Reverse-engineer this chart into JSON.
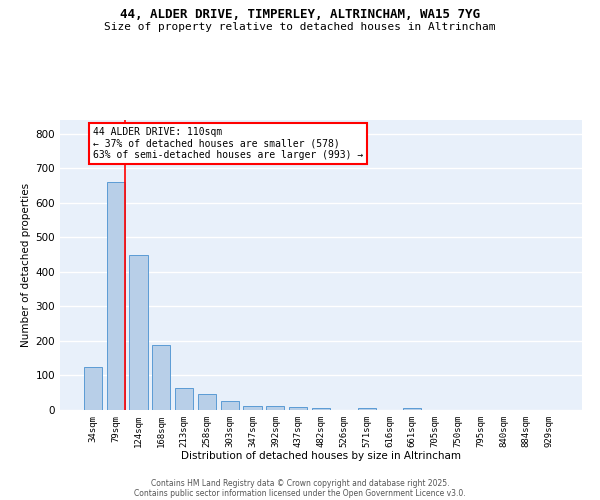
{
  "title_line1": "44, ALDER DRIVE, TIMPERLEY, ALTRINCHAM, WA15 7YG",
  "title_line2": "Size of property relative to detached houses in Altrincham",
  "xlabel": "Distribution of detached houses by size in Altrincham",
  "ylabel": "Number of detached properties",
  "categories": [
    "34sqm",
    "79sqm",
    "124sqm",
    "168sqm",
    "213sqm",
    "258sqm",
    "303sqm",
    "347sqm",
    "392sqm",
    "437sqm",
    "482sqm",
    "526sqm",
    "571sqm",
    "616sqm",
    "661sqm",
    "705sqm",
    "750sqm",
    "795sqm",
    "840sqm",
    "884sqm",
    "929sqm"
  ],
  "values": [
    125,
    660,
    450,
    188,
    63,
    46,
    27,
    11,
    13,
    10,
    5,
    0,
    7,
    0,
    5,
    0,
    0,
    0,
    0,
    0,
    0
  ],
  "bar_color": "#b8cfe8",
  "bar_edge_color": "#5b9bd5",
  "vline_x": 1.4,
  "vline_color": "red",
  "annotation_text": "44 ALDER DRIVE: 110sqm\n← 37% of detached houses are smaller (578)\n63% of semi-detached houses are larger (993) →",
  "annotation_box_color": "white",
  "annotation_box_edge_color": "red",
  "ylim": [
    0,
    840
  ],
  "yticks": [
    0,
    100,
    200,
    300,
    400,
    500,
    600,
    700,
    800
  ],
  "background_color": "#e8f0fa",
  "grid_color": "white",
  "title_fontsize": 9,
  "subtitle_fontsize": 8,
  "footer_line1": "Contains HM Land Registry data © Crown copyright and database right 2025.",
  "footer_line2": "Contains public sector information licensed under the Open Government Licence v3.0."
}
